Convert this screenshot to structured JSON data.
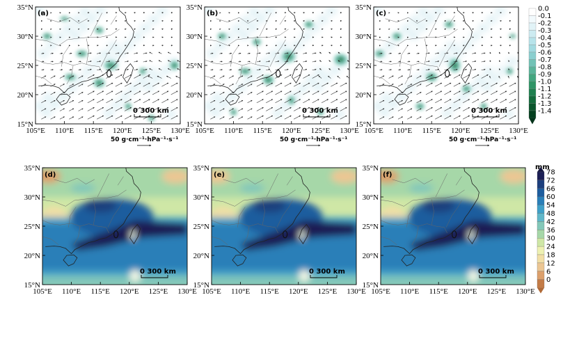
{
  "figure": {
    "top_colorbar": {
      "labels": [
        "0.0",
        "-0.1",
        "-0.2",
        "-0.3",
        "-0.4",
        "-0.5",
        "-0.6",
        "-0.7",
        "-0.8",
        "-0.9",
        "-1.0",
        "-1.1",
        "-1.2",
        "-1.3",
        "-1.4"
      ],
      "colors": [
        "#ffffff",
        "#f2fafd",
        "#e1f3f7",
        "#cdebf1",
        "#b7e3ea",
        "#a2dae0",
        "#8bcfcf",
        "#72c2b6",
        "#5ab49a",
        "#43a67f",
        "#2f9466",
        "#1f8050",
        "#136b3c",
        "#0a552c",
        "#04401f"
      ]
    },
    "bottom_colorbar": {
      "unit": "mm",
      "labels": [
        "78",
        "72",
        "66",
        "60",
        "54",
        "48",
        "42",
        "36",
        "30",
        "24",
        "18",
        "12",
        "6",
        "0"
      ],
      "colors": [
        "#1c1f55",
        "#1d3f7d",
        "#1e5d9e",
        "#2a7fb8",
        "#3fa0c8",
        "#60b7c9",
        "#83c8b9",
        "#a6d7a8",
        "#cfe7a6",
        "#eef1b2",
        "#f2dfa6",
        "#ecc693",
        "#dca06c",
        "#c47c47"
      ]
    },
    "lat_labels": [
      "35°N",
      "30°N",
      "25°N",
      "20°N",
      "15°N"
    ],
    "lon_labels": [
      "105°E",
      "110°E",
      "115°E",
      "120°E",
      "125°E",
      "130°E"
    ],
    "panels_top": [
      {
        "label": "(a)",
        "scale": "0   300 km",
        "ref_vector": "50 g·cm⁻¹·hPa⁻¹·s⁻¹"
      },
      {
        "label": "(b)",
        "scale": "0   300 km",
        "ref_vector": "50 g·cm⁻¹·hPa⁻¹·s⁻¹"
      },
      {
        "label": "(c)",
        "scale": "0   300 km",
        "ref_vector": "50 g·cm⁻¹·hPa⁻¹·s⁻¹"
      }
    ],
    "panels_bottom": [
      {
        "label": "(d)",
        "scale": "0   300 km"
      },
      {
        "label": "(e)",
        "scale": "0   300 km"
      },
      {
        "label": "(f)",
        "scale": "0   300 km"
      }
    ]
  }
}
